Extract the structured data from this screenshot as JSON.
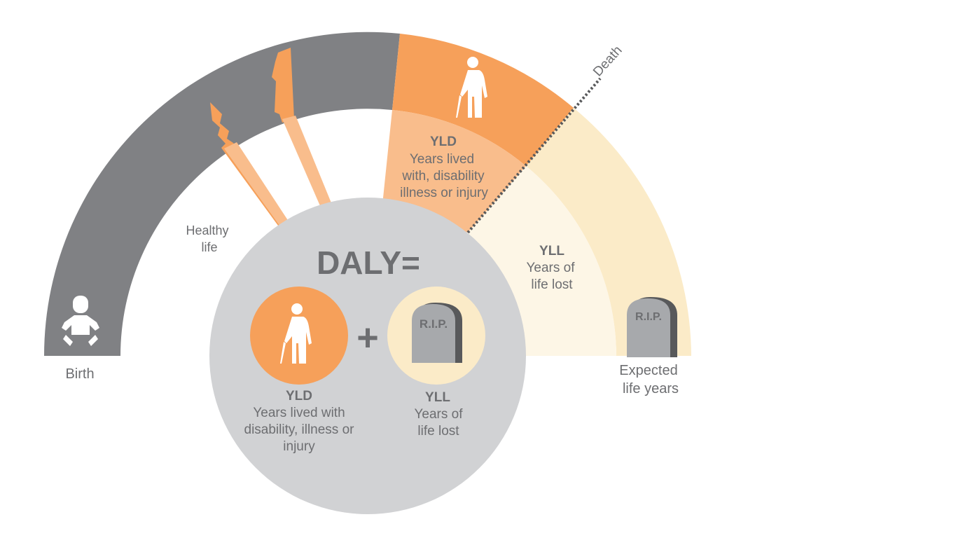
{
  "labels": {
    "birth": "Birth",
    "healthy_line1": "Healthy",
    "healthy_line2": "life",
    "death": "Death",
    "expected_line1": "Expected",
    "expected_line2": "life years",
    "arc_yld_title": "YLD",
    "arc_yld_line1": "Years lived",
    "arc_yld_line2": "with, disability",
    "arc_yld_line3": "illness or injury",
    "arc_yll_title": "YLL",
    "arc_yll_line1": "Years of",
    "arc_yll_line2": "life lost",
    "formula_title": "DALY=",
    "formula_plus": "+",
    "formula_yld_title": "YLD",
    "formula_yld_line1": "Years lived with",
    "formula_yld_line2": "disability, illness or",
    "formula_yld_line3": "injury",
    "formula_yll_title": "YLL",
    "formula_yll_line1": "Years of",
    "formula_yll_line2": "life lost",
    "rip_arc": "R.I.P.",
    "rip_formula": "R.I.P."
  },
  "icons": {
    "baby": "baby-icon",
    "elder": "elderly-person-icon",
    "tombstone": "tombstone-icon"
  },
  "colors": {
    "healthy_arc": "#808184",
    "yld_orange": "#f6a05a",
    "yld_light": "#f9bd8c",
    "yll_band": "#fbebc8",
    "yll_inner": "#fdf6e6",
    "formula_circle": "#d1d2d4",
    "text_gray": "#6d6e71",
    "tomb_gray": "#a7a9ac",
    "tomb_dark": "#58595b"
  }
}
